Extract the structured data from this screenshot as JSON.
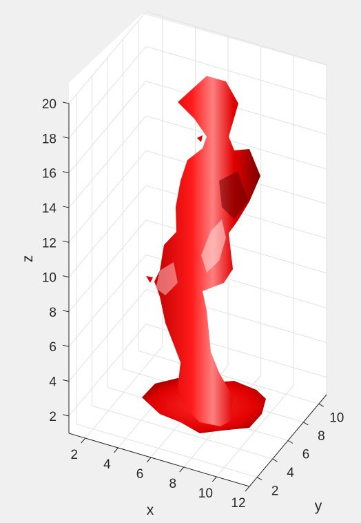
{
  "chart_data": {
    "type": "isosurface-3d",
    "title": "",
    "xlabel": "x",
    "ylabel": "y",
    "zlabel": "z",
    "xlim": [
      1,
      12
    ],
    "ylim": [
      1,
      11
    ],
    "zlim": [
      1,
      20
    ],
    "x_ticks": [
      2,
      4,
      6,
      8,
      10,
      12
    ],
    "y_ticks": [
      2,
      4,
      6,
      8,
      10
    ],
    "z_ticks": [
      2,
      4,
      6,
      8,
      10,
      12,
      14,
      16,
      18,
      20
    ],
    "grid": true,
    "surface_color": "#ff0000",
    "colors": {
      "background": "#f0f0f0",
      "axes_face": "#ffffff",
      "grid": "#e1e1e1",
      "axis": "#262626"
    }
  }
}
